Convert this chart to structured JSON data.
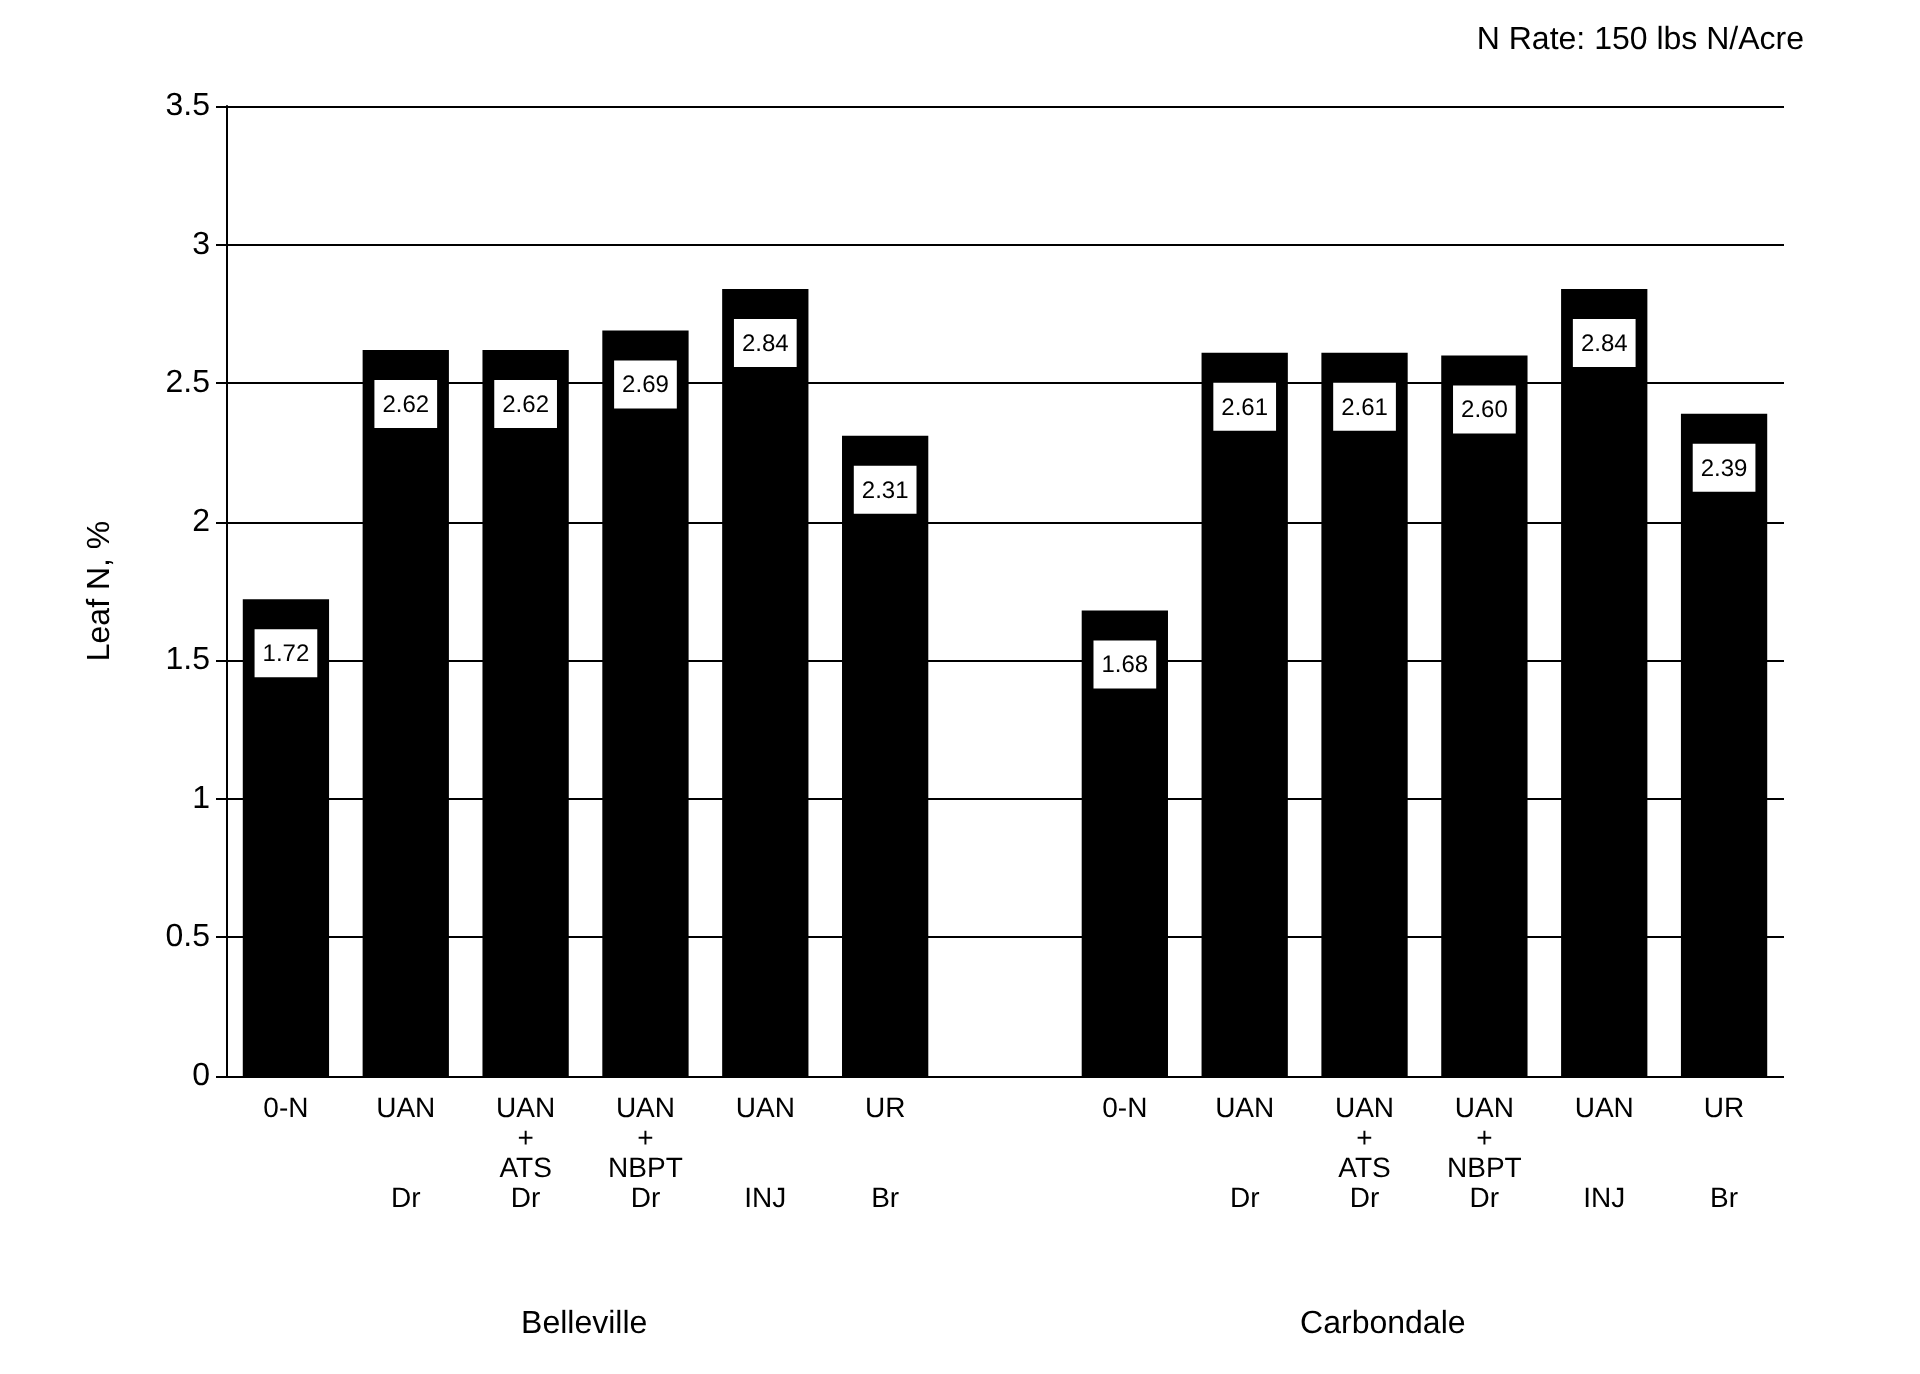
{
  "chart_data": {
    "type": "bar",
    "subtitle": "N Rate: 150 lbs N/Acre",
    "ylabel": "Leaf N, %",
    "categories": [
      "0-N",
      "UAN\n\n\nDr",
      "UAN\n+\nATS\nDr",
      "UAN\n+\nNBPT\nDr",
      "UAN\n\n\nINJ",
      "UR\n\n\nBr",
      null,
      "0-N",
      "UAN\n\n\nDr",
      "UAN\n+\nATS\nDr",
      "UAN\n+\nNBPT\nDr",
      "UAN\n\n\nINJ",
      "UR\n\n\nBr"
    ],
    "series": [
      {
        "color": "#000000",
        "values": [
          1.72,
          2.62,
          2.62,
          2.69,
          2.84,
          2.31,
          null,
          1.68,
          2.61,
          2.61,
          2.6,
          2.84,
          2.39
        ],
        "value_labels": [
          "1.72",
          "2.62",
          "2.62",
          "2.69",
          "2.84",
          "2.31",
          null,
          "1.68",
          "2.61",
          "2.61",
          "2.60",
          "2.84",
          "2.39"
        ]
      }
    ],
    "ylim": [
      0,
      3.5
    ],
    "yticks": [
      0,
      0.5,
      1,
      1.5,
      2,
      2.5,
      3,
      3.5
    ],
    "grid": "y",
    "annotations": [
      "Belleville",
      "Carbondale"
    ]
  }
}
